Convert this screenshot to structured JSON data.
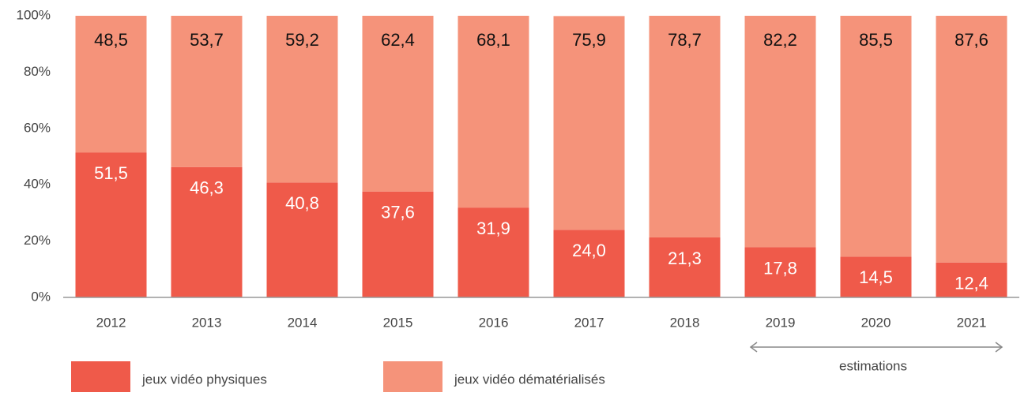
{
  "chart_data": {
    "type": "stacked_bar",
    "categories": [
      "2012",
      "2013",
      "2014",
      "2015",
      "2016",
      "2017",
      "2018",
      "2019",
      "2020",
      "2021"
    ],
    "series": [
      {
        "name": "jeux vidéo physiques",
        "color": "#ef5a4a",
        "values": [
          51.5,
          46.3,
          40.8,
          37.6,
          31.9,
          24.0,
          21.3,
          17.8,
          14.5,
          12.4
        ],
        "value_labels": [
          "51,5",
          "46,3",
          "40,8",
          "37,6",
          "31,9",
          "24,0",
          "21,3",
          "17,8",
          "14,5",
          "12,4"
        ]
      },
      {
        "name": "jeux vidéo dématérialisés",
        "color": "#f5937a",
        "values": [
          48.5,
          53.7,
          59.2,
          62.4,
          68.1,
          75.9,
          78.7,
          82.2,
          85.5,
          87.6
        ],
        "value_labels": [
          "48,5",
          "53,7",
          "59,2",
          "62,4",
          "68,1",
          "75,9",
          "78,7",
          "82,2",
          "85,5",
          "87,6"
        ]
      }
    ],
    "ylim": [
      0,
      100
    ],
    "yticks": [
      {
        "value": 0,
        "label": "0%"
      },
      {
        "value": 20,
        "label": "20%"
      },
      {
        "value": 40,
        "label": "40%"
      },
      {
        "value": 60,
        "label": "60%"
      },
      {
        "value": 80,
        "label": "80%"
      },
      {
        "value": 100,
        "label": "100%"
      }
    ],
    "grid": false,
    "annotations": [
      "estimations"
    ]
  }
}
